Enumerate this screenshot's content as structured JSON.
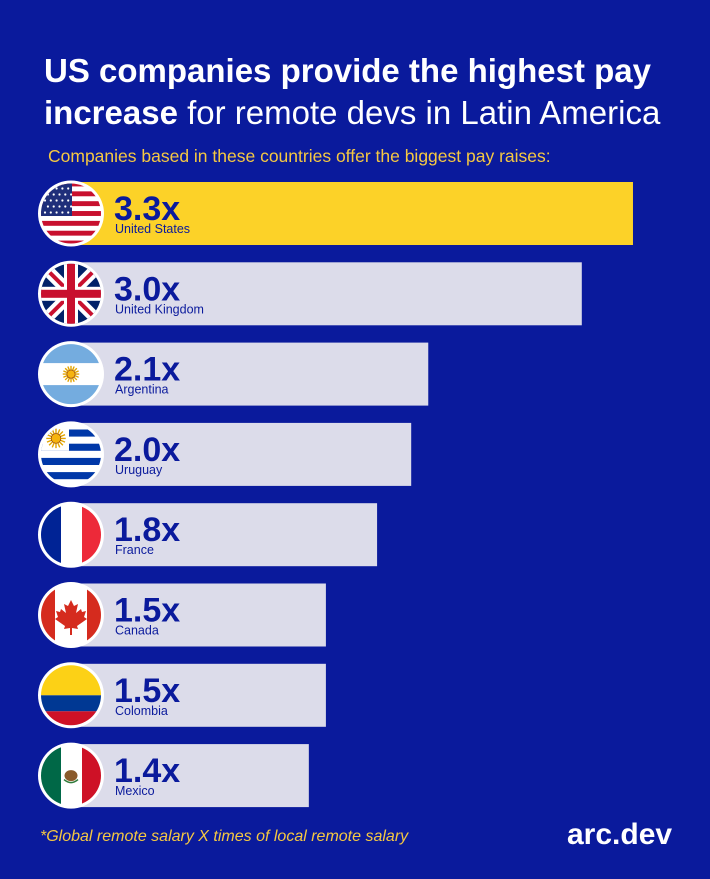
{
  "title": {
    "bold": "US companies provide the highest pay increase",
    "regular": " for remote devs in Latin America"
  },
  "subtitle": "Companies based in these countries offer the biggest pay raises:",
  "chart_data": {
    "type": "bar",
    "orientation": "horizontal",
    "categories": [
      "United States",
      "United Kingdom",
      "Argentina",
      "Uruguay",
      "France",
      "Canada",
      "Colombia",
      "Mexico"
    ],
    "values": [
      3.3,
      3.0,
      2.1,
      2.0,
      1.8,
      1.5,
      1.5,
      1.4
    ],
    "value_labels": [
      "3.3x",
      "3.0x",
      "2.1x",
      "2.0x",
      "1.8x",
      "1.5x",
      "1.5x",
      "1.4x"
    ],
    "flag_icons": [
      "us-flag-icon",
      "uk-flag-icon",
      "argentina-flag-icon",
      "uruguay-flag-icon",
      "france-flag-icon",
      "canada-flag-icon",
      "colombia-flag-icon",
      "mexico-flag-icon"
    ],
    "bar_colors": [
      "#fcd228",
      "#dcdcea",
      "#dcdcea",
      "#dcdcea",
      "#dcdcea",
      "#dcdcea",
      "#dcdcea",
      "#dcdcea"
    ],
    "highlight_color": "#fcd228",
    "bar_color": "#dcdcea",
    "label_color": "#0a1a9c",
    "background_color": "#0a1a9c",
    "grid": false
  },
  "footnote": "*Global remote salary X times of local remote salary",
  "brand": "arc.dev"
}
